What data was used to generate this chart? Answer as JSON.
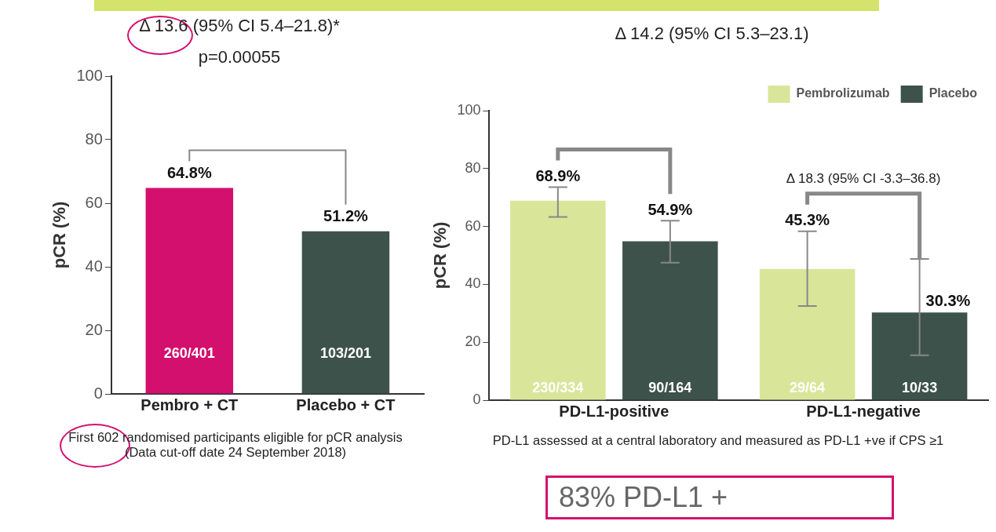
{
  "chart_data": [
    {
      "type": "bar",
      "title": "Δ 13.6 (95% CI 5.4–21.8)*",
      "subtitle": "p=0.00055",
      "ylabel": "pCR (%)",
      "categories": [
        "Pembro + CT",
        "Placebo + CT"
      ],
      "values": [
        64.8,
        51.2
      ],
      "colors": [
        "#d4106e",
        "#3d524b"
      ],
      "value_labels": [
        "64.8%",
        "51.2%"
      ],
      "ylim": [
        0,
        100
      ],
      "yticks": [
        0,
        20,
        40,
        60,
        80,
        100
      ],
      "grid": false,
      "annotations": [
        "260/401",
        "103/201",
        "First 602 randomised participants eligible for pCR analysis\n(Data cut-off date 24 September 2018)"
      ]
    },
    {
      "type": "bar",
      "title": "Δ 14.2 (95% CI 5.3–23.1)",
      "ylabel": "pCR (%)",
      "categories": [
        "PD-L1-positive",
        "PD-L1-negative"
      ],
      "series": [
        {
          "name": "Pembrolizumab",
          "color": "#d9e69a",
          "values": [
            68.9,
            45.3
          ],
          "errors": [
            [
              63.3,
              73.6
            ],
            [
              32.5,
              58.3
            ]
          ],
          "value_labels": [
            "68.9%",
            "45.3%"
          ]
        },
        {
          "name": "Placebo",
          "color": "#3d524b",
          "values": [
            54.9,
            30.3
          ],
          "errors": [
            [
              47.5,
              62
            ],
            [
              15.5,
              48.8
            ]
          ],
          "value_labels": [
            "54.9%",
            "30.3%"
          ]
        }
      ],
      "ylim": [
        0,
        100
      ],
      "yticks": [
        0,
        20,
        40,
        60,
        80,
        100
      ],
      "grid": false,
      "legend": "top right",
      "annotations": [
        "230/334",
        "90/164",
        "29/64",
        "10/33",
        "Δ 18.3 (95% CI -3.3–36.8)",
        "PD-L1 assessed at a central laboratory and measured as PD-L1 +ve if CPS ≥1",
        "83% PD-L1 +"
      ]
    }
  ]
}
